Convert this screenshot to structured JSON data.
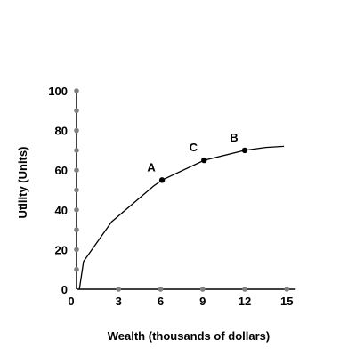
{
  "chart_data": {
    "type": "line",
    "title": "",
    "xlabel": "Wealth (thousands of dollars)",
    "ylabel": "Utility (Units)",
    "xlim": [
      0,
      15
    ],
    "ylim": [
      0,
      100
    ],
    "x_ticks": [
      0,
      3,
      6,
      9,
      12,
      15
    ],
    "y_ticks": [
      0,
      20,
      40,
      60,
      80,
      100
    ],
    "x_tick_labels": [
      "0",
      "3",
      "6",
      "9",
      "12",
      "15"
    ],
    "y_tick_labels": [
      "0",
      "20",
      "40",
      "60",
      "80",
      "100"
    ],
    "x_marker_dots": [
      3,
      6,
      9,
      12,
      15
    ],
    "y_marker_dots": [
      10,
      20,
      30,
      40,
      50,
      60,
      70,
      80,
      90,
      100
    ],
    "grid": false,
    "legend": "none",
    "series": [
      {
        "x": [
          0.2,
          0.5,
          2.5,
          5.5,
          6.1,
          9.1,
          12,
          13.5,
          14.8
        ],
        "y": [
          0,
          14,
          34,
          52,
          55,
          65,
          70,
          71.5,
          72
        ]
      }
    ],
    "annotations": [
      {
        "label": "A",
        "x": 6.1,
        "y": 55
      },
      {
        "label": "C",
        "x": 9.1,
        "y": 65
      },
      {
        "label": "B",
        "x": 12,
        "y": 70
      }
    ],
    "colors": {
      "line": "#000000",
      "axis": "#000000",
      "axis_marker": "#808080",
      "point": "#000000"
    }
  }
}
